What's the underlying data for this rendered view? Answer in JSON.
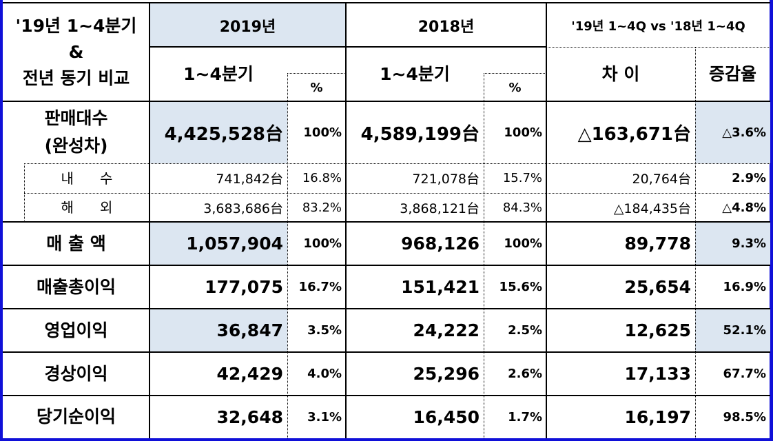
{
  "header": {
    "corner_line1": "'19년 1~4분기",
    "corner_line2": "&",
    "corner_line3": "전년 동기 비교",
    "year_2019": "2019년",
    "year_2018": "2018년",
    "comparison": "'19년 1~4Q vs '18년 1~4Q",
    "period_2019": "1~4분기",
    "period_2018": "1~4분기",
    "pct_2019": "%",
    "pct_2018": "%",
    "difference": "차 이",
    "change_rate": "증감율"
  },
  "rows": [
    {
      "label": "판매대수\n(완성차)",
      "v2019": "4,425,528台",
      "p2019": "100%",
      "v2018": "4,589,199台",
      "p2018": "100%",
      "diff": "△163,671台",
      "rate": "△3.6%",
      "kind": "main-units",
      "shade": true
    },
    {
      "label": "내      수",
      "v2019": "741,842台",
      "p2019": "16.8%",
      "v2018": "721,078台",
      "p2018": "15.7%",
      "diff": "20,764台",
      "rate": "2.9%",
      "kind": "sub",
      "shade": false
    },
    {
      "label": "해      외",
      "v2019": "3,683,686台",
      "p2019": "83.2%",
      "v2018": "3,868,121台",
      "p2018": "84.3%",
      "diff": "△184,435台",
      "rate": "△4.8%",
      "kind": "sub",
      "shade": false
    },
    {
      "label": "매 출 액",
      "v2019": "1,057,904",
      "p2019": "100%",
      "v2018": "968,126",
      "p2018": "100%",
      "diff": "89,778",
      "rate": "9.3%",
      "kind": "main",
      "shade": true
    },
    {
      "label": "매출총이익",
      "v2019": "177,075",
      "p2019": "16.7%",
      "v2018": "151,421",
      "p2018": "15.6%",
      "diff": "25,654",
      "rate": "16.9%",
      "kind": "main",
      "shade": false
    },
    {
      "label": "영업이익",
      "v2019": "36,847",
      "p2019": "3.5%",
      "v2018": "24,222",
      "p2018": "2.5%",
      "diff": "12,625",
      "rate": "52.1%",
      "kind": "main",
      "shade": true
    },
    {
      "label": "경상이익",
      "v2019": "42,429",
      "p2019": "4.0%",
      "v2018": "25,296",
      "p2018": "2.6%",
      "diff": "17,133",
      "rate": "67.7%",
      "kind": "main",
      "shade": false
    },
    {
      "label": "당기순이익",
      "v2019": "32,648",
      "p2019": "3.1%",
      "v2018": "16,450",
      "p2018": "1.7%",
      "diff": "16,197",
      "rate": "98.5%",
      "kind": "main",
      "shade": false
    }
  ],
  "colors": {
    "shade": "#dce6f1",
    "frame": "#1010d8"
  }
}
